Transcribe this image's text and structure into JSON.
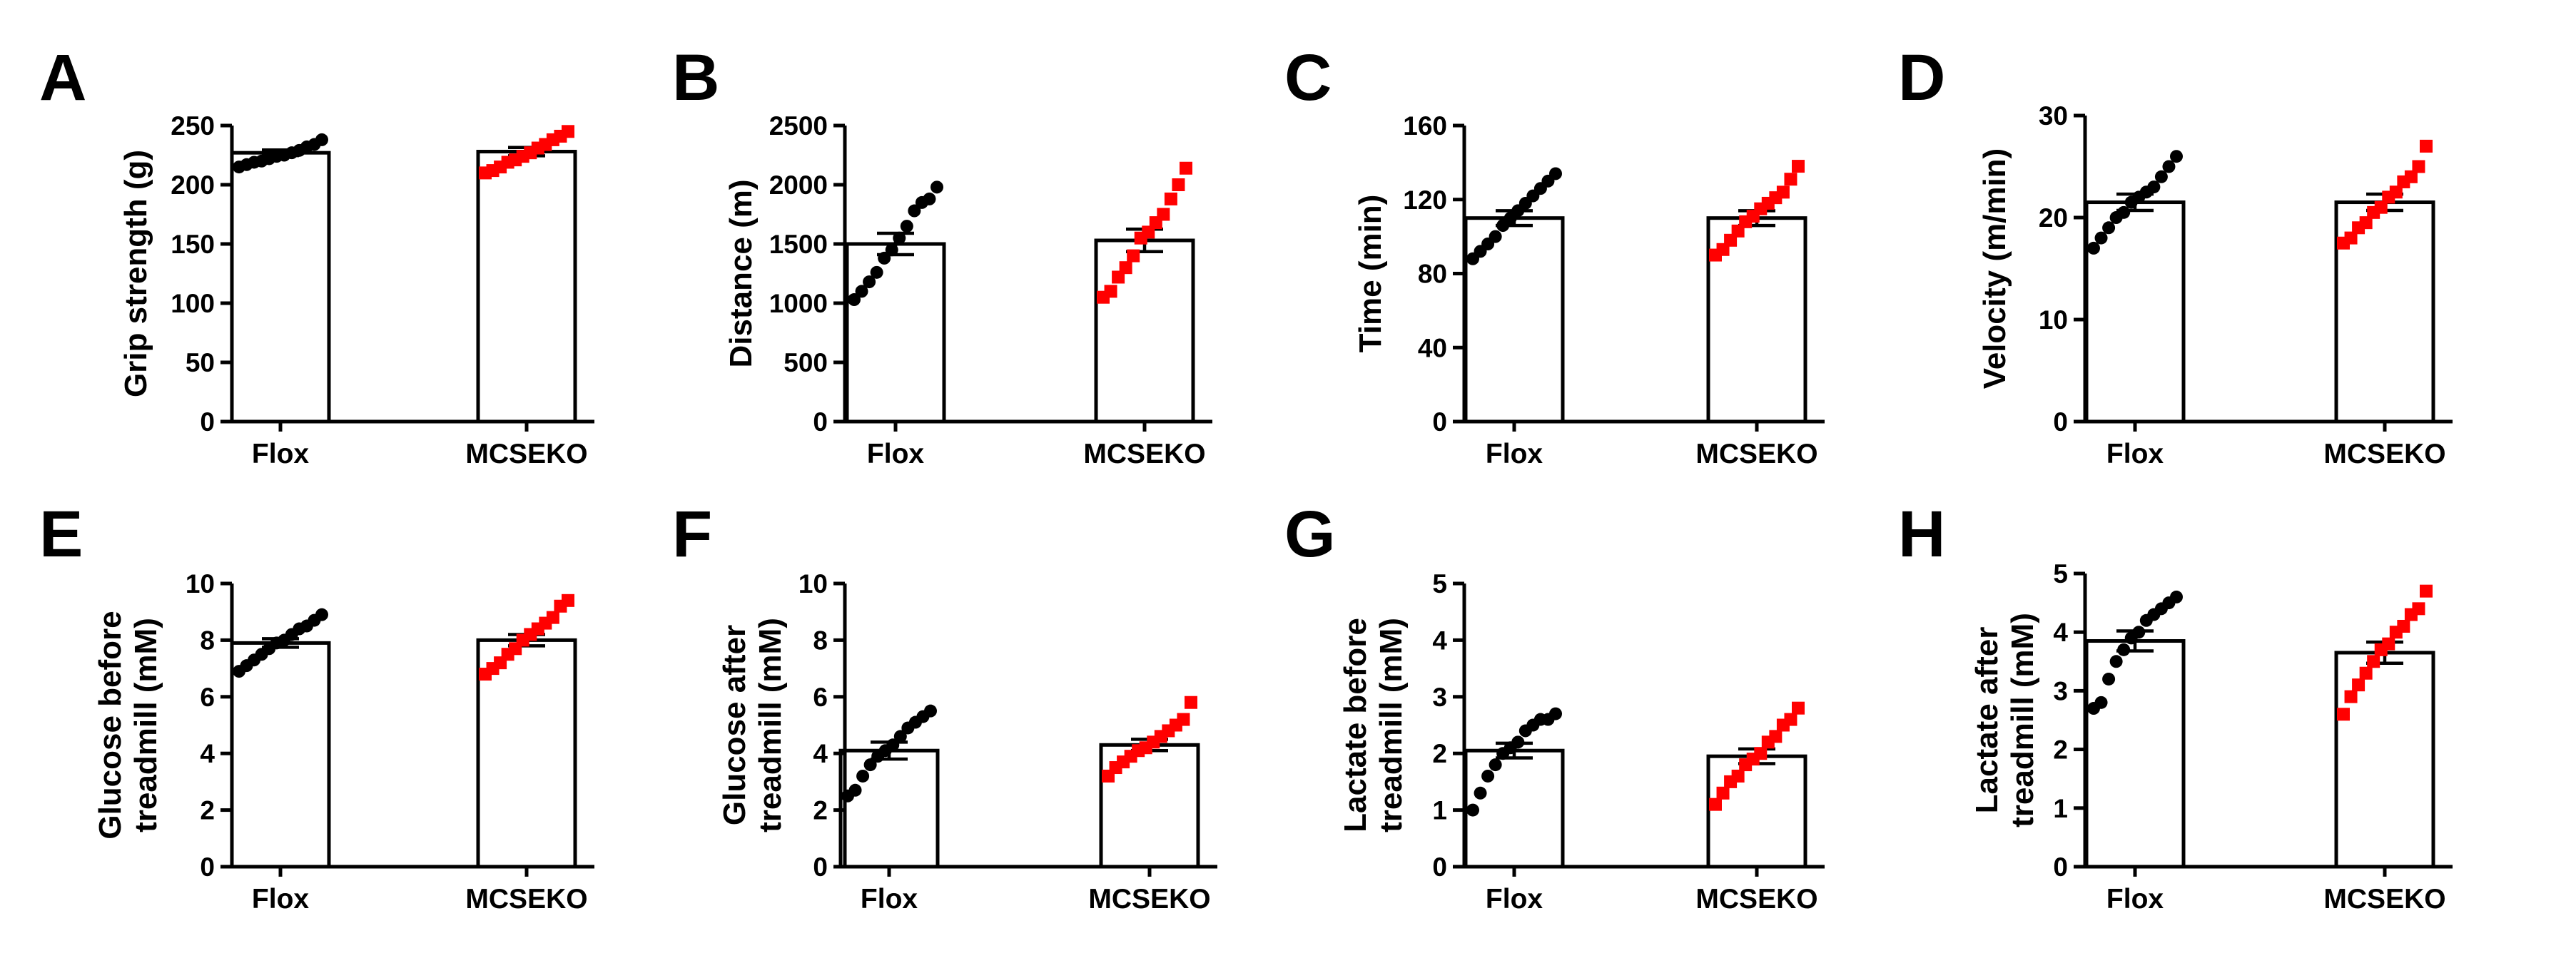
{
  "categories": [
    "Flox",
    "MCSEKO"
  ],
  "colors": {
    "Flox": "#000000",
    "MCSEKO": "#ff0000"
  },
  "chart_data": [
    {
      "panel": "A",
      "type": "bar",
      "ylabel": [
        "Grip strength (g)"
      ],
      "ylim": [
        0,
        250
      ],
      "yticks": [
        0,
        50,
        100,
        150,
        200,
        250
      ],
      "series": [
        {
          "name": "Flox",
          "mean": 227,
          "sem": 2.4,
          "points": [
            215,
            217,
            219,
            220,
            222,
            224,
            225,
            227,
            229,
            232,
            234,
            238
          ]
        },
        {
          "name": "MCSEKO",
          "mean": 228,
          "sem": 3.5,
          "points": [
            210,
            212,
            215,
            219,
            221,
            224,
            227,
            231,
            234,
            238,
            241,
            245
          ]
        }
      ]
    },
    {
      "panel": "B",
      "type": "bar",
      "ylabel": [
        "Distance (m)"
      ],
      "ylim": [
        0,
        2500
      ],
      "yticks": [
        0,
        500,
        1000,
        1500,
        2000,
        2500
      ],
      "series": [
        {
          "name": "Flox",
          "mean": 1500,
          "sem": 90,
          "points": [
            1030,
            1100,
            1180,
            1260,
            1380,
            1450,
            1550,
            1650,
            1780,
            1850,
            1880,
            1980
          ]
        },
        {
          "name": "MCSEKO",
          "mean": 1530,
          "sem": 95,
          "points": [
            1050,
            1100,
            1220,
            1300,
            1400,
            1550,
            1600,
            1680,
            1750,
            1880,
            2000,
            2140
          ]
        }
      ]
    },
    {
      "panel": "C",
      "type": "bar",
      "ylabel": [
        "Time (min)"
      ],
      "ylim": [
        0,
        160
      ],
      "yticks": [
        0,
        40,
        80,
        120,
        160
      ],
      "series": [
        {
          "name": "Flox",
          "mean": 110,
          "sem": 4,
          "points": [
            88,
            92,
            96,
            100,
            106,
            110,
            114,
            118,
            122,
            126,
            130,
            134
          ]
        },
        {
          "name": "MCSEKO",
          "mean": 110,
          "sem": 4,
          "points": [
            90,
            93,
            98,
            103,
            108,
            111,
            115,
            118,
            121,
            124,
            131,
            138
          ]
        }
      ]
    },
    {
      "panel": "D",
      "type": "bar",
      "ylabel": [
        "Velocity (m/min)"
      ],
      "ylim": [
        0,
        30
      ],
      "yticks": [
        0,
        10,
        20,
        30
      ],
      "series": [
        {
          "name": "Flox",
          "mean": 21.5,
          "sem": 0.8,
          "points": [
            17,
            18,
            19,
            20,
            20.5,
            21.5,
            22,
            22.5,
            23,
            24,
            25,
            26
          ]
        },
        {
          "name": "MCSEKO",
          "mean": 21.5,
          "sem": 0.8,
          "points": [
            17.5,
            18,
            19,
            19.5,
            20.5,
            21,
            22,
            22.5,
            23.5,
            24,
            25,
            27
          ]
        }
      ]
    },
    {
      "panel": "E",
      "type": "bar",
      "ylabel": [
        "Glucose before",
        "treadmill (mM)"
      ],
      "ylim": [
        0,
        10
      ],
      "yticks": [
        0,
        2,
        4,
        6,
        8,
        10
      ],
      "series": [
        {
          "name": "Flox",
          "mean": 7.9,
          "sem": 0.15,
          "points": [
            6.9,
            7.1,
            7.3,
            7.5,
            7.7,
            7.9,
            8.0,
            8.2,
            8.4,
            8.5,
            8.7,
            8.9
          ]
        },
        {
          "name": "MCSEKO",
          "mean": 8.0,
          "sem": 0.2,
          "points": [
            6.8,
            7.0,
            7.2,
            7.5,
            7.7,
            8.0,
            8.2,
            8.4,
            8.6,
            8.8,
            9.2,
            9.4
          ]
        }
      ]
    },
    {
      "panel": "F",
      "type": "bar",
      "ylabel": [
        "Glucose after",
        "treadmill (mM)"
      ],
      "ylim": [
        0,
        10
      ],
      "yticks": [
        0,
        2,
        4,
        6,
        8,
        10
      ],
      "series": [
        {
          "name": "Flox",
          "mean": 4.1,
          "sem": 0.3,
          "points": [
            2.5,
            2.7,
            3.2,
            3.6,
            3.9,
            4.1,
            4.3,
            4.6,
            4.9,
            5.1,
            5.3,
            5.5
          ]
        },
        {
          "name": "MCSEKO",
          "mean": 4.3,
          "sem": 0.2,
          "points": [
            3.2,
            3.5,
            3.7,
            3.9,
            4.1,
            4.2,
            4.4,
            4.6,
            4.8,
            5.0,
            5.2,
            5.8
          ]
        }
      ]
    },
    {
      "panel": "G",
      "type": "bar",
      "ylabel": [
        "Lactate before",
        "treadmill (mM)"
      ],
      "ylim": [
        0,
        5
      ],
      "yticks": [
        0,
        1,
        2,
        3,
        4,
        5
      ],
      "series": [
        {
          "name": "Flox",
          "mean": 2.05,
          "sem": 0.13,
          "points": [
            1.0,
            1.3,
            1.6,
            1.8,
            2.0,
            2.1,
            2.2,
            2.4,
            2.5,
            2.6,
            2.6,
            2.7
          ]
        },
        {
          "name": "MCSEKO",
          "mean": 1.95,
          "sem": 0.13,
          "points": [
            1.1,
            1.3,
            1.5,
            1.6,
            1.8,
            1.9,
            2.0,
            2.2,
            2.3,
            2.5,
            2.6,
            2.8
          ]
        }
      ]
    },
    {
      "panel": "H",
      "type": "bar",
      "ylabel": [
        "Lactate after",
        "treadmill (mM)"
      ],
      "ylim": [
        0,
        5
      ],
      "yticks": [
        0,
        1,
        2,
        3,
        4,
        5
      ],
      "series": [
        {
          "name": "Flox",
          "mean": 3.85,
          "sem": 0.17,
          "points": [
            2.7,
            2.8,
            3.2,
            3.5,
            3.7,
            3.9,
            4.0,
            4.2,
            4.3,
            4.4,
            4.5,
            4.6
          ]
        },
        {
          "name": "MCSEKO",
          "mean": 3.65,
          "sem": 0.18,
          "points": [
            2.6,
            2.9,
            3.1,
            3.3,
            3.5,
            3.7,
            3.8,
            4.0,
            4.1,
            4.3,
            4.4,
            4.7
          ]
        }
      ]
    }
  ]
}
